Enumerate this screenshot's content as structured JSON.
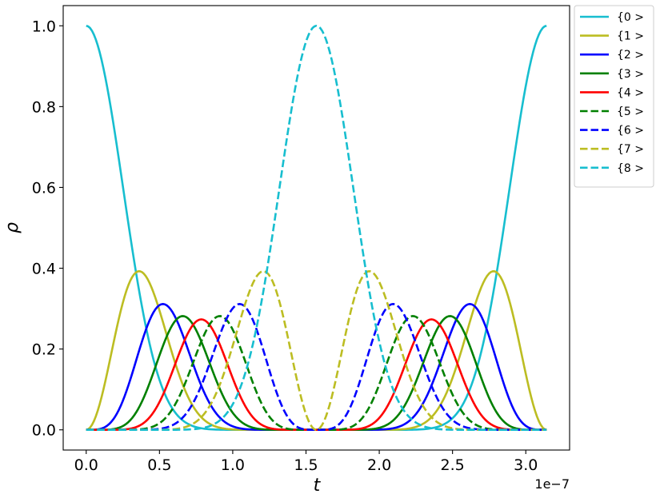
{
  "chart_data": {
    "type": "line",
    "title": "",
    "xlabel": "t",
    "ylabel": "ρ",
    "x_offset_label": "1e−7",
    "xlim": [
      -0.157,
      3.299
    ],
    "ylim": [
      -0.05,
      1.05
    ],
    "x_ticks": [
      0.0,
      0.5,
      1.0,
      1.5,
      2.0,
      2.5,
      3.0
    ],
    "x_tick_labels": [
      "0.0",
      "0.5",
      "1.0",
      "1.5",
      "2.0",
      "2.5",
      "3.0"
    ],
    "y_ticks": [
      0.0,
      0.2,
      0.4,
      0.6,
      0.8,
      1.0
    ],
    "y_tick_labels": [
      "0.0",
      "0.2",
      "0.4",
      "0.6",
      "0.8",
      "1.0"
    ],
    "grid": false,
    "legend_position": "outside top-right",
    "x_unit_scale": 1e-07,
    "x_range": [
      0,
      3.1416
    ],
    "samples": 241,
    "series": [
      {
        "name": "{0 >",
        "color": "#17becf",
        "dash": "solid",
        "level": 0
      },
      {
        "name": "{1 >",
        "color": "#bcbd22",
        "dash": "solid",
        "level": 1
      },
      {
        "name": "{2 >",
        "color": "#0000ff",
        "dash": "solid",
        "level": 2
      },
      {
        "name": "{3 >",
        "color": "#008000",
        "dash": "solid",
        "level": 3
      },
      {
        "name": "{4 >",
        "color": "#ff0000",
        "dash": "solid",
        "level": 4
      },
      {
        "name": "{5 >",
        "color": "#008000",
        "dash": "dashed",
        "level": 5
      },
      {
        "name": "{6 >",
        "color": "#0000ff",
        "dash": "dashed",
        "level": 6
      },
      {
        "name": "{7 >",
        "color": "#bcbd22",
        "dash": "dashed",
        "level": 7
      },
      {
        "name": "{8 >",
        "color": "#17becf",
        "dash": "dashed",
        "level": 8
      }
    ],
    "model": "rho_k(t) = C(8,k) * cos^2(T/2)^(8-k) * sin^2(T/2)^k, with T = 2*pi * t / 3.1416e-7"
  }
}
